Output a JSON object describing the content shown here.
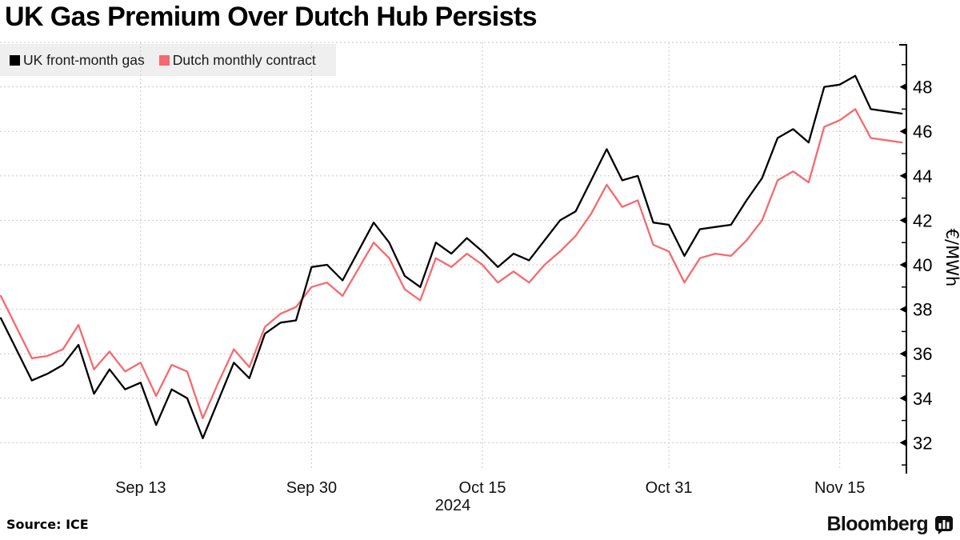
{
  "title": "UK Gas Premium Over Dutch Hub Persists",
  "source": "Source: ICE",
  "branding": "Bloomberg",
  "legend": {
    "items": [
      {
        "label": "UK front-month gas",
        "color": "#000000"
      },
      {
        "label": "Dutch monthly contract",
        "color": "#f7696e"
      }
    ]
  },
  "chart_data": {
    "type": "line",
    "title": "UK Gas Premium Over Dutch Hub Persists",
    "ylabel": "€/MWh",
    "year_label": "2024",
    "grid": "dashed",
    "legend_position": "top-left",
    "ylim": [
      30.6,
      50
    ],
    "yticks": [
      32,
      34,
      36,
      38,
      40,
      42,
      44,
      46,
      48
    ],
    "xticks": [
      {
        "label": "Sep 13",
        "date": "2024-09-13"
      },
      {
        "label": "Sep 30",
        "date": "2024-09-30"
      },
      {
        "label": "Oct 15",
        "date": "2024-10-15"
      },
      {
        "label": "Oct 31",
        "date": "2024-10-31"
      },
      {
        "label": "Nov 15",
        "date": "2024-11-15"
      }
    ],
    "x": [
      "2024-09-02",
      "2024-09-03",
      "2024-09-04",
      "2024-09-05",
      "2024-09-06",
      "2024-09-09",
      "2024-09-10",
      "2024-09-11",
      "2024-09-12",
      "2024-09-13",
      "2024-09-16",
      "2024-09-17",
      "2024-09-18",
      "2024-09-19",
      "2024-09-20",
      "2024-09-23",
      "2024-09-24",
      "2024-09-25",
      "2024-09-26",
      "2024-09-27",
      "2024-09-30",
      "2024-10-01",
      "2024-10-02",
      "2024-10-03",
      "2024-10-04",
      "2024-10-07",
      "2024-10-08",
      "2024-10-09",
      "2024-10-10",
      "2024-10-11",
      "2024-10-14",
      "2024-10-15",
      "2024-10-16",
      "2024-10-17",
      "2024-10-18",
      "2024-10-21",
      "2024-10-22",
      "2024-10-23",
      "2024-10-24",
      "2024-10-25",
      "2024-10-28",
      "2024-10-29",
      "2024-10-30",
      "2024-10-31",
      "2024-11-01",
      "2024-11-04",
      "2024-11-05",
      "2024-11-06",
      "2024-11-07",
      "2024-11-08",
      "2024-11-11",
      "2024-11-12",
      "2024-11-13",
      "2024-11-14",
      "2024-11-15",
      "2024-11-18",
      "2024-11-19",
      "2024-11-20",
      "2024-11-21"
    ],
    "series": [
      {
        "name": "UK front-month gas",
        "color": "#000000",
        "values": [
          37.6,
          36.2,
          34.8,
          35.1,
          35.5,
          36.4,
          34.2,
          35.3,
          34.4,
          34.7,
          32.8,
          34.4,
          34.0,
          32.2,
          33.9,
          35.6,
          34.9,
          36.9,
          37.4,
          37.5,
          39.9,
          40.0,
          39.3,
          40.6,
          41.9,
          41.0,
          39.5,
          39.0,
          41.0,
          40.5,
          41.2,
          40.6,
          39.9,
          40.5,
          40.2,
          41.1,
          42.0,
          42.4,
          43.8,
          45.2,
          43.8,
          44.0,
          41.9,
          41.8,
          40.4,
          41.6,
          41.7,
          41.8,
          42.9,
          43.9,
          45.7,
          46.1,
          45.5,
          48.0,
          48.1,
          48.5,
          47.0,
          46.9,
          46.8
        ]
      },
      {
        "name": "Dutch monthly contract",
        "color": "#f7696e",
        "values": [
          38.6,
          37.2,
          35.8,
          35.9,
          36.2,
          37.3,
          35.3,
          36.1,
          35.2,
          35.6,
          34.1,
          35.5,
          35.2,
          33.1,
          34.7,
          36.2,
          35.4,
          37.2,
          37.8,
          38.1,
          39.0,
          39.2,
          38.6,
          39.8,
          41.0,
          40.3,
          38.9,
          38.4,
          40.3,
          39.9,
          40.5,
          40.0,
          39.2,
          39.7,
          39.2,
          40.0,
          40.6,
          41.3,
          42.3,
          43.6,
          42.6,
          42.9,
          40.9,
          40.6,
          39.2,
          40.3,
          40.5,
          40.4,
          41.1,
          42.0,
          43.8,
          44.2,
          43.7,
          46.2,
          46.5,
          47.0,
          45.7,
          45.6,
          45.5
        ]
      }
    ]
  }
}
